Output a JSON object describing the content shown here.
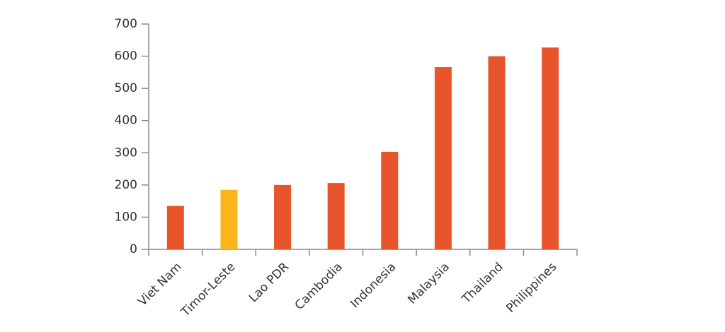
{
  "chart_data": {
    "type": "bar",
    "categories": [
      "Viet Nam",
      "Timor-Leste",
      "Lao PDR",
      "Cambodia",
      "Indonesia",
      "Malaysia",
      "Thailand",
      "Philippines"
    ],
    "values": [
      135,
      185,
      200,
      206,
      303,
      566,
      600,
      627
    ],
    "colors": [
      "#e8542b",
      "#fbb41a",
      "#e8542b",
      "#e8542b",
      "#e8542b",
      "#e8542b",
      "#e8542b",
      "#e8542b"
    ],
    "ylim": [
      0,
      700
    ],
    "yticks": [
      0,
      100,
      200,
      300,
      400,
      500,
      600,
      700
    ],
    "grid": false
  }
}
